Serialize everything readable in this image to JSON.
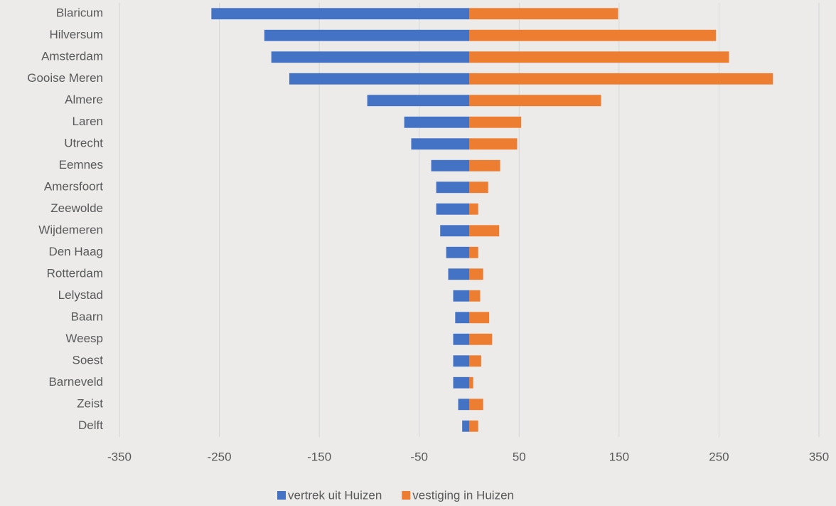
{
  "chart_data": {
    "type": "hbar-diverging",
    "categories": [
      "Blaricum",
      "Hilversum",
      "Amsterdam",
      "Gooise Meren",
      "Almere",
      "Laren",
      "Utrecht",
      "Eemnes",
      "Amersfoort",
      "Zeewolde",
      "Wijdemeren",
      "Den Haag",
      "Rotterdam",
      "Lelystad",
      "Baarn",
      "Weesp",
      "Soest",
      "Barneveld",
      "Zeist",
      "Delft"
    ],
    "series": [
      {
        "name": "vertrek uit Huizen",
        "color": "#4472c4",
        "values": [
          -258,
          -205,
          -198,
          -180,
          -102,
          -65,
          -58,
          -38,
          -33,
          -33,
          -29,
          -23,
          -21,
          -16,
          -14,
          -16,
          -16,
          -16,
          -11,
          -7
        ]
      },
      {
        "name": "vestiging in Huizen",
        "color": "#ed7d31",
        "values": [
          149,
          247,
          260,
          304,
          132,
          52,
          48,
          31,
          19,
          9,
          30,
          9,
          14,
          11,
          20,
          23,
          12,
          4,
          14,
          9
        ]
      }
    ],
    "xlim": [
      -350,
      350
    ],
    "xticks": [
      -350,
      -250,
      -150,
      -50,
      50,
      150,
      250,
      350
    ],
    "grid": true,
    "legend": "bottom"
  }
}
